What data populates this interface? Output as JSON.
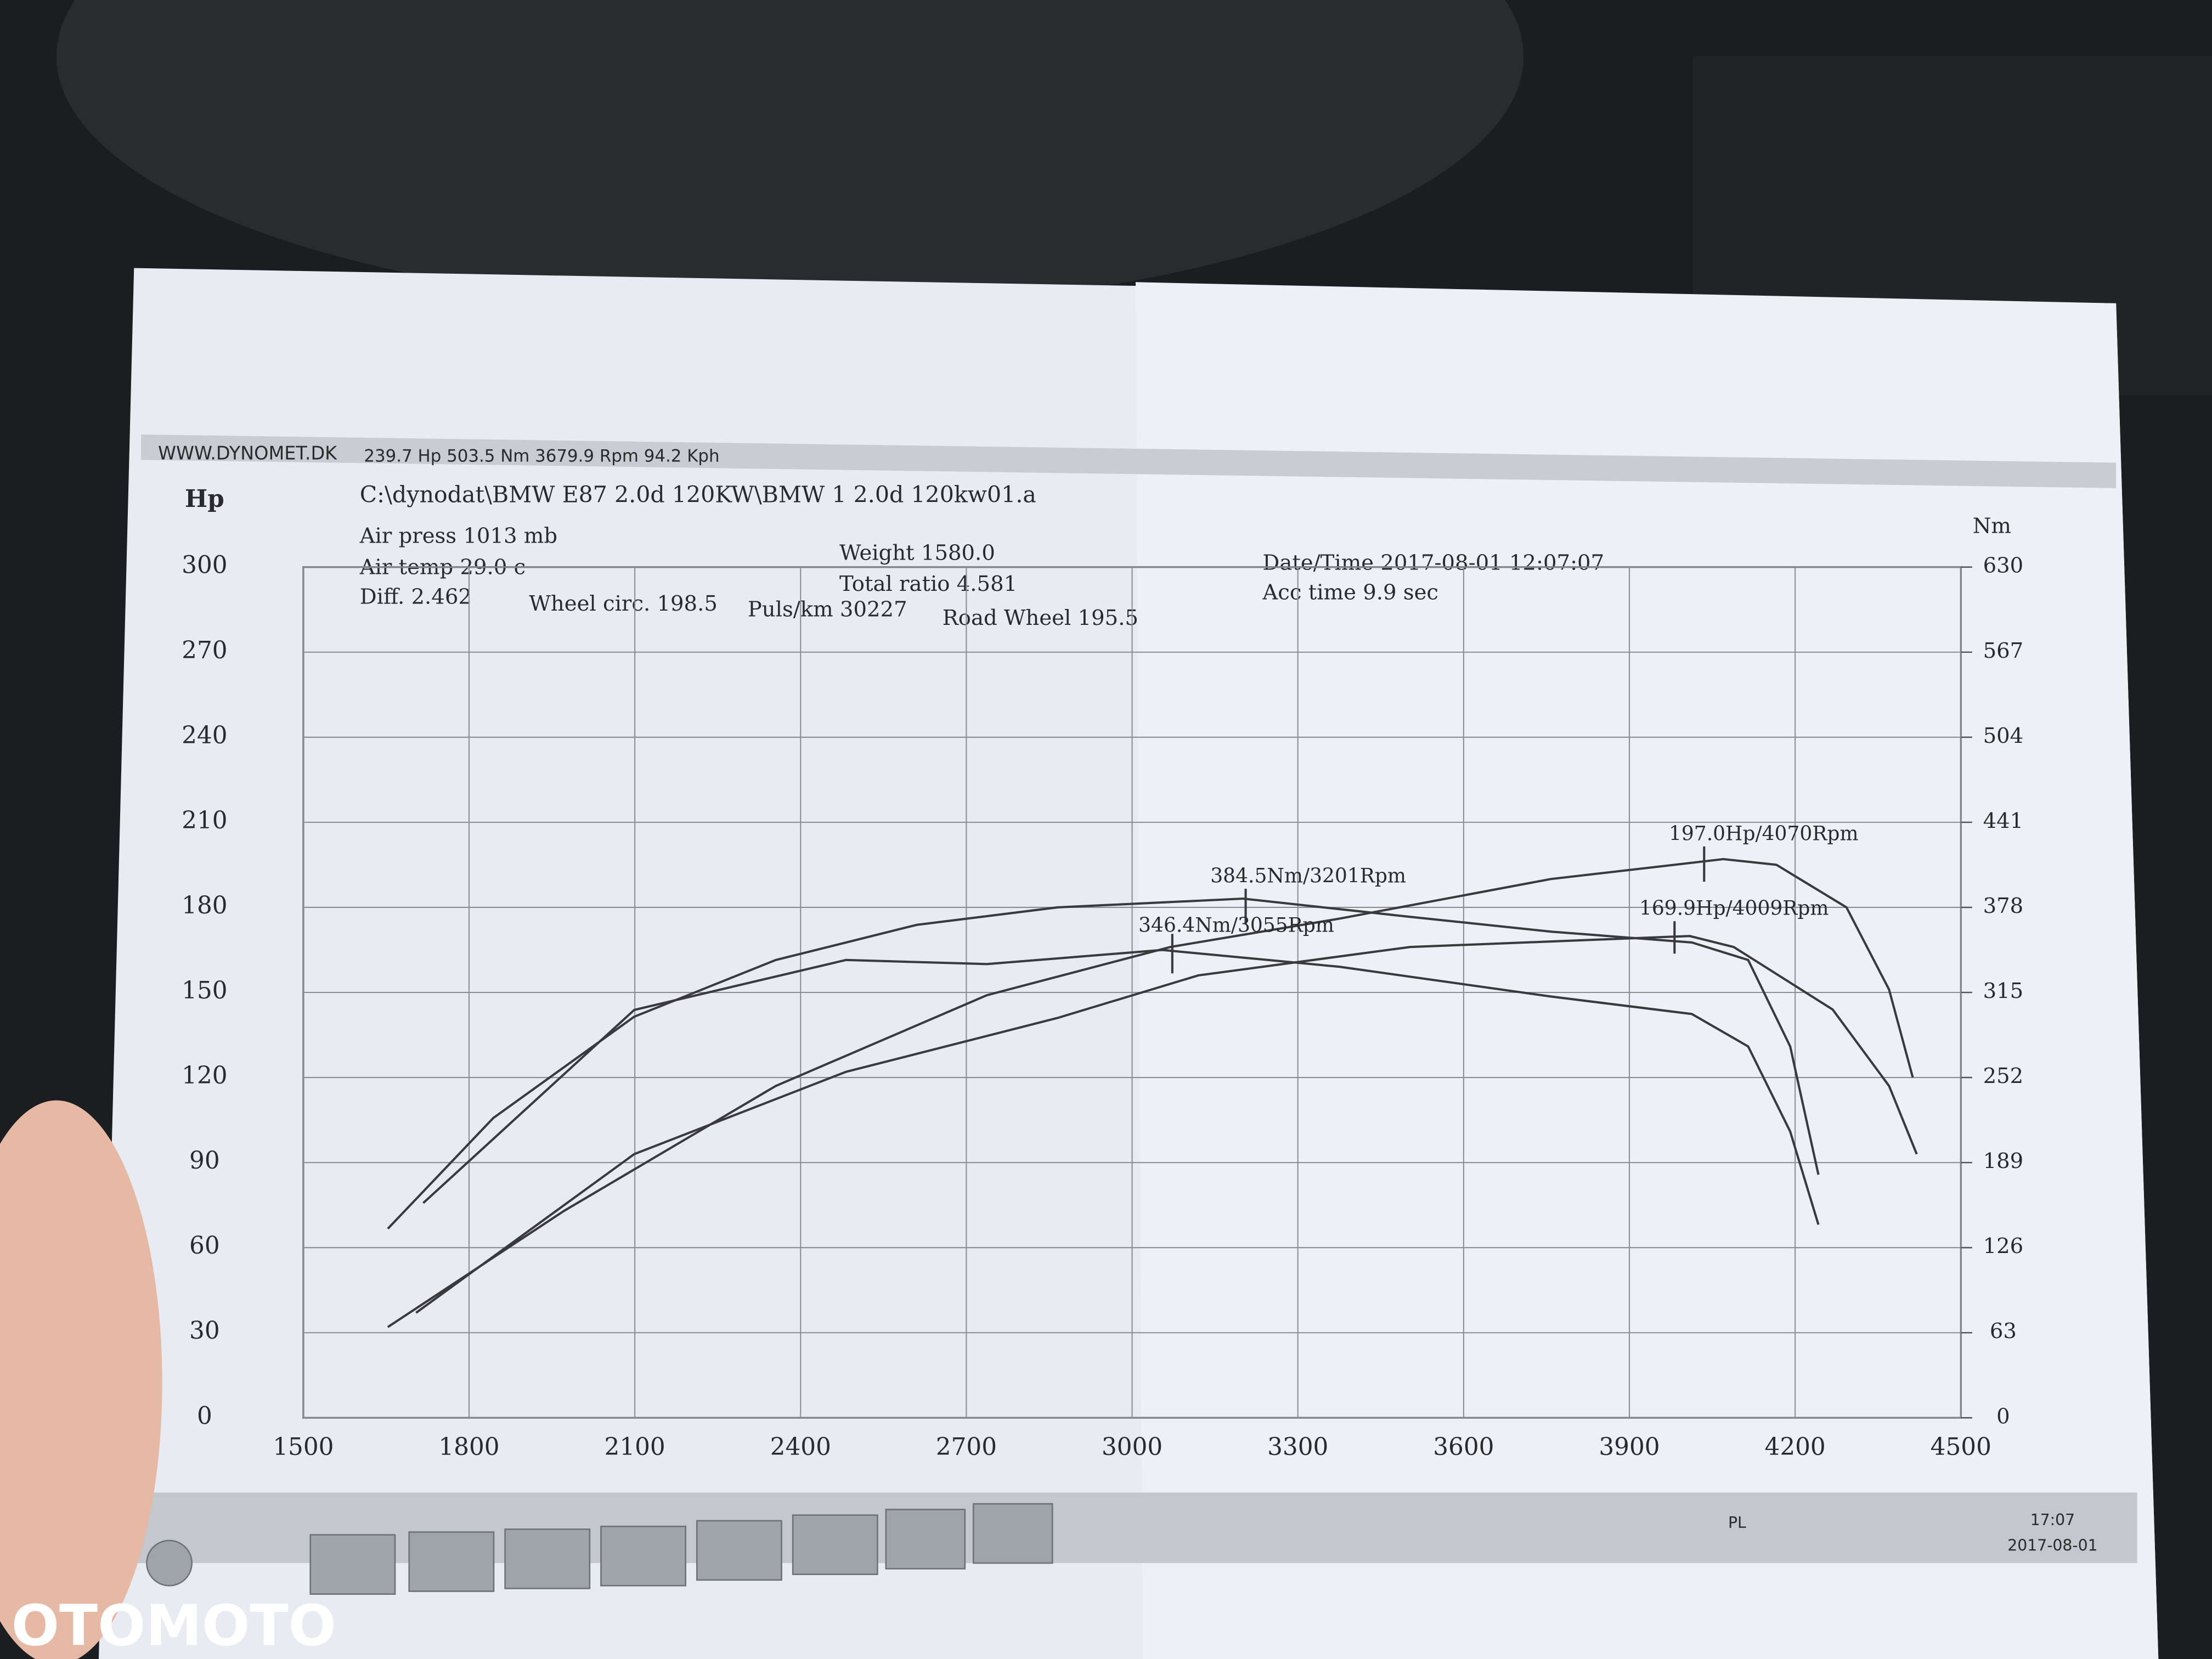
{
  "chart_data": {
    "type": "line",
    "header": "WWW.DYNOMET.DK",
    "header_stats": "239.7 Hp 503.5 Nm 3679.9 Rpm 94.2 Kph",
    "file": "C:\\dynodat\\BMW E87 2.0d 120KW\\BMW 1 2.0d 120kw01.a",
    "info": [
      "Air press  1013 mb",
      "Air temp  29.0 c",
      "Diff.    2.462",
      "Wheel circ. 198.5",
      "Puls/km  30227",
      "Road Wheel 195.5",
      "Weight  1580.0",
      "Total ratio 4.581",
      "Date/Time  2017-08-01 12:07:07",
      "Acc time   9.9 sec"
    ],
    "ylabel": "Hp",
    "y2label": "Nm",
    "xlim": [
      1500,
      4500
    ],
    "xticks": [
      1500,
      1800,
      2100,
      2400,
      2700,
      3000,
      3300,
      3600,
      3900,
      4200,
      4500
    ],
    "ylim": [
      0,
      300
    ],
    "yticks": [
      0,
      30,
      60,
      90,
      120,
      150,
      180,
      210,
      240,
      270,
      300
    ],
    "y2lim": [
      0,
      630
    ],
    "y2ticks": [
      0,
      63,
      126,
      189,
      252,
      315,
      378,
      441,
      504,
      567,
      630
    ],
    "grid": true,
    "series": [
      {
        "axis": "y2",
        "color": "#3a3a3e",
        "x": [
          1653,
          1844,
          2099,
          2355,
          2610,
          2865,
          3201,
          3503,
          3758,
          4013,
          4115,
          4191,
          4242
        ],
        "values": [
          140,
          222,
          297,
          339,
          365,
          378,
          384.5,
          371,
          360,
          352,
          339,
          275,
          180
        ]
      },
      {
        "axis": "y2",
        "color": "#3a3a3e",
        "x": [
          1717,
          2099,
          2482,
          2737,
          3055,
          3375,
          3758,
          4013,
          4115,
          4191,
          4242
        ],
        "values": [
          159,
          302,
          339,
          336,
          346.4,
          334,
          312,
          299,
          275,
          212,
          143
        ]
      },
      {
        "color": "#3a3a3e",
        "x": [
          1653,
          1972,
          2355,
          2737,
          3069,
          3375,
          3758,
          4070,
          4166,
          4293,
          4370,
          4413
        ],
        "values": [
          32,
          73,
          117,
          149,
          166,
          176,
          190,
          197.0,
          195,
          180,
          151,
          120
        ]
      },
      {
        "color": "#3a3a3e",
        "x": [
          1704,
          2099,
          2482,
          2865,
          3120,
          3503,
          4009,
          4089,
          4268,
          4370,
          4420
        ],
        "values": [
          37,
          93,
          122,
          141,
          156,
          166,
          169.9,
          166,
          144,
          117,
          93
        ]
      }
    ],
    "annotations": [
      "384.5Nm/3201Rpm",
      "346.4Nm/3055Rpm",
      "197.0Hp/4070Rpm",
      "169.9Hp/4009Rpm"
    ],
    "taskbar": {
      "lang": "PL",
      "time": "17:07",
      "date": "2017-08-01"
    }
  },
  "watermark": "OTOMOTO"
}
